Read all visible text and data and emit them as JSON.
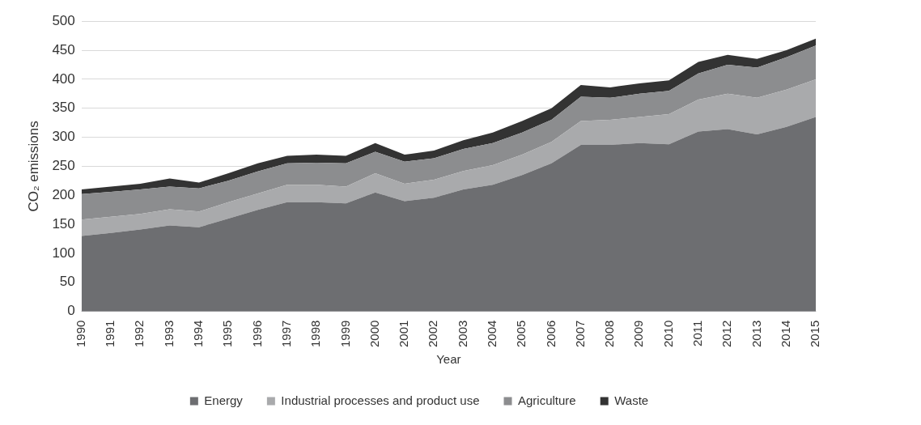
{
  "chart_data": {
    "type": "area",
    "stacked": true,
    "xlabel": "Year",
    "ylabel": "CO₂ emissions",
    "categories": [
      "1990",
      "1991",
      "1992",
      "1993",
      "1994",
      "1995",
      "1996",
      "1997",
      "1998",
      "1999",
      "2000",
      "2001",
      "2002",
      "2003",
      "2004",
      "2005",
      "2006",
      "2007",
      "2008",
      "2009",
      "2010",
      "2011",
      "2012",
      "2013",
      "2014",
      "2015"
    ],
    "series": [
      {
        "name": "Energy",
        "color": "#6d6e71",
        "values": [
          130,
          135,
          141,
          148,
          145,
          160,
          175,
          188,
          188,
          186,
          205,
          190,
          196,
          210,
          218,
          235,
          255,
          287,
          287,
          290,
          288,
          310,
          314,
          305,
          318,
          335
        ]
      },
      {
        "name": "Industrial processes and product use",
        "color": "#a9aaac",
        "values": [
          28,
          28,
          27,
          28,
          27,
          28,
          28,
          30,
          30,
          29,
          33,
          30,
          31,
          32,
          34,
          35,
          37,
          41,
          43,
          45,
          52,
          55,
          61,
          63,
          64,
          65
        ]
      },
      {
        "name": "Agriculture",
        "color": "#8c8d8f",
        "values": [
          44,
          43,
          42,
          39,
          40,
          37,
          38,
          37,
          38,
          40,
          37,
          38,
          37,
          38,
          38,
          38,
          38,
          42,
          38,
          40,
          40,
          45,
          50,
          52,
          56,
          58
        ]
      },
      {
        "name": "Waste",
        "color": "#333333",
        "values": [
          8,
          9,
          10,
          14,
          10,
          13,
          14,
          13,
          14,
          13,
          15,
          12,
          13,
          15,
          18,
          20,
          20,
          20,
          18,
          18,
          18,
          20,
          17,
          15,
          12,
          12
        ]
      }
    ],
    "ylim": [
      0,
      500
    ],
    "yticks": [
      0,
      50,
      100,
      150,
      200,
      250,
      300,
      350,
      400,
      450,
      500
    ],
    "grid": "y",
    "legend": "bottom"
  }
}
